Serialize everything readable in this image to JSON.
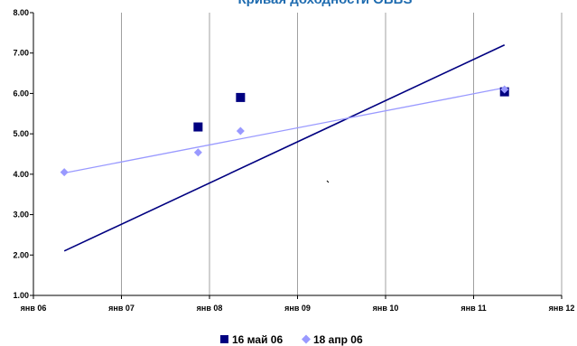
{
  "chart_data": {
    "type": "scatter",
    "title": "Кривая доходности OBBS",
    "xlabel": "",
    "ylabel": "",
    "x_ticks": [
      "янв 06",
      "янв 07",
      "янв 08",
      "янв 09",
      "янв 10",
      "янв 11",
      "янв 12"
    ],
    "x_range": [
      "2006-01-01",
      "2012-01-01"
    ],
    "y_ticks": [
      "1.00",
      "2.00",
      "3.00",
      "4.00",
      "5.00",
      "6.00",
      "7.00",
      "8.00"
    ],
    "ylim": [
      1,
      8
    ],
    "grid": "vertical",
    "legend_position": "bottom",
    "series": [
      {
        "name": "16 май 06",
        "marker": "square",
        "color": "#000080",
        "points": [
          {
            "x": "2007-11-15",
            "y": 5.17
          },
          {
            "x": "2008-05-09",
            "y": 5.9
          },
          {
            "x": "2011-05-09",
            "y": 6.04
          }
        ],
        "trendline": [
          {
            "x": "2006-05-09",
            "y": 2.1
          },
          {
            "x": "2011-05-09",
            "y": 7.2
          }
        ]
      },
      {
        "name": "18 апр 06",
        "marker": "diamond",
        "color": "#9999FF",
        "points": [
          {
            "x": "2006-05-09",
            "y": 4.05
          },
          {
            "x": "2007-11-15",
            "y": 4.54
          },
          {
            "x": "2008-05-09",
            "y": 5.07
          },
          {
            "x": "2011-05-09",
            "y": 6.1
          }
        ],
        "trendline": [
          {
            "x": "2006-05-09",
            "y": 4.03
          },
          {
            "x": "2011-05-09",
            "y": 6.14
          }
        ]
      }
    ]
  }
}
